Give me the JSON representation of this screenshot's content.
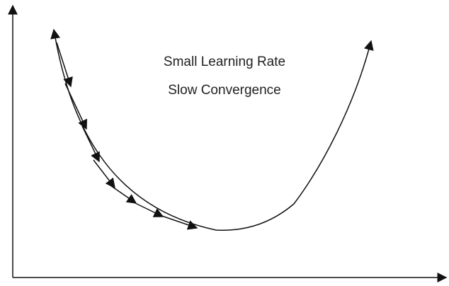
{
  "annotation": {
    "lines": [
      "Small Learning Rate",
      "Slow Convergence"
    ]
  }
}
